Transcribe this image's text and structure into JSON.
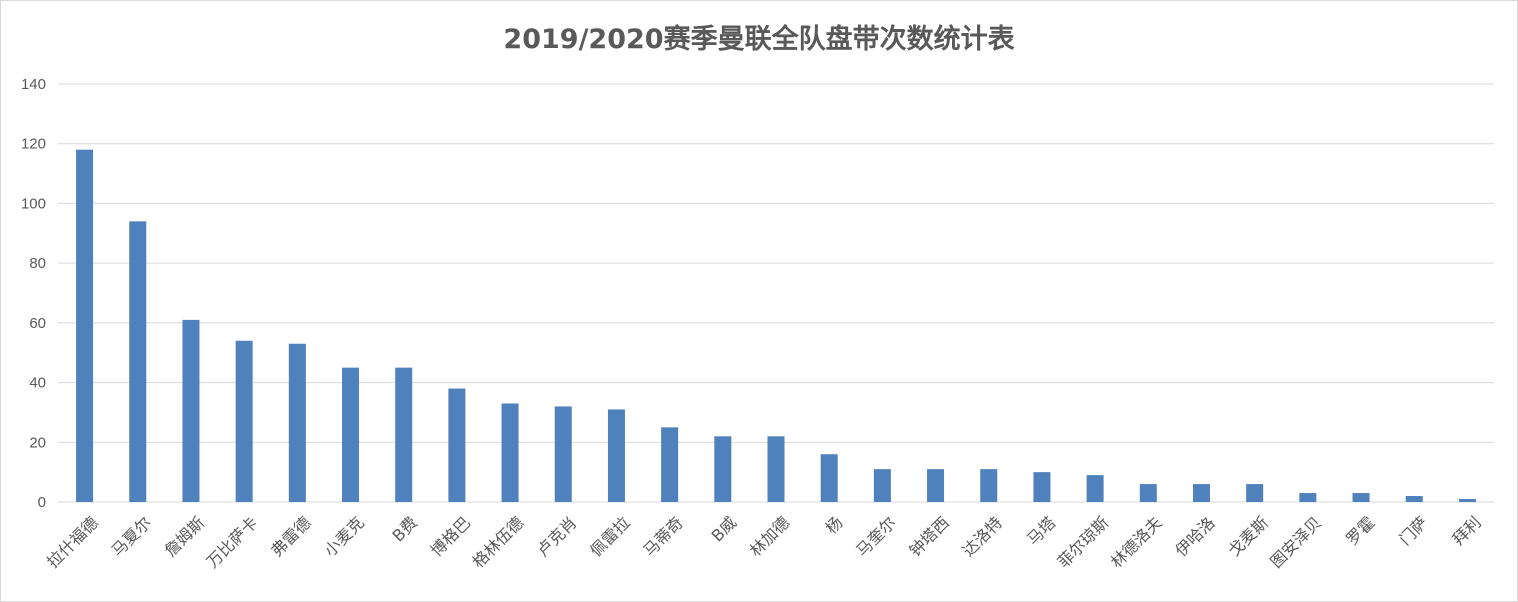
{
  "chart_data": {
    "type": "bar",
    "title": "2019/2020赛季曼联全队盘带次数统计表",
    "xlabel": "",
    "ylabel": "",
    "ylim": [
      0,
      140
    ],
    "yticks": [
      0,
      20,
      40,
      60,
      80,
      100,
      120,
      140
    ],
    "grid": true,
    "bar_color": "#4f81bd",
    "grid_color": "#d9d9d9",
    "categories": [
      "拉什福德",
      "马夏尔",
      "詹姆斯",
      "万比萨卡",
      "弗雷德",
      "小麦克",
      "B费",
      "博格巴",
      "格林伍德",
      "卢克肖",
      "佩雷拉",
      "马蒂奇",
      "B威",
      "林加德",
      "杨",
      "马奎尔",
      "钟塔西",
      "达洛特",
      "马塔",
      "菲尔琼斯",
      "林德洛夫",
      "伊哈洛",
      "戈麦斯",
      "图安泽贝",
      "罗霍",
      "门萨",
      "拜利"
    ],
    "values": [
      118,
      94,
      61,
      54,
      53,
      45,
      45,
      38,
      33,
      32,
      31,
      25,
      22,
      22,
      16,
      11,
      11,
      11,
      10,
      9,
      6,
      6,
      6,
      3,
      3,
      2,
      1
    ]
  }
}
